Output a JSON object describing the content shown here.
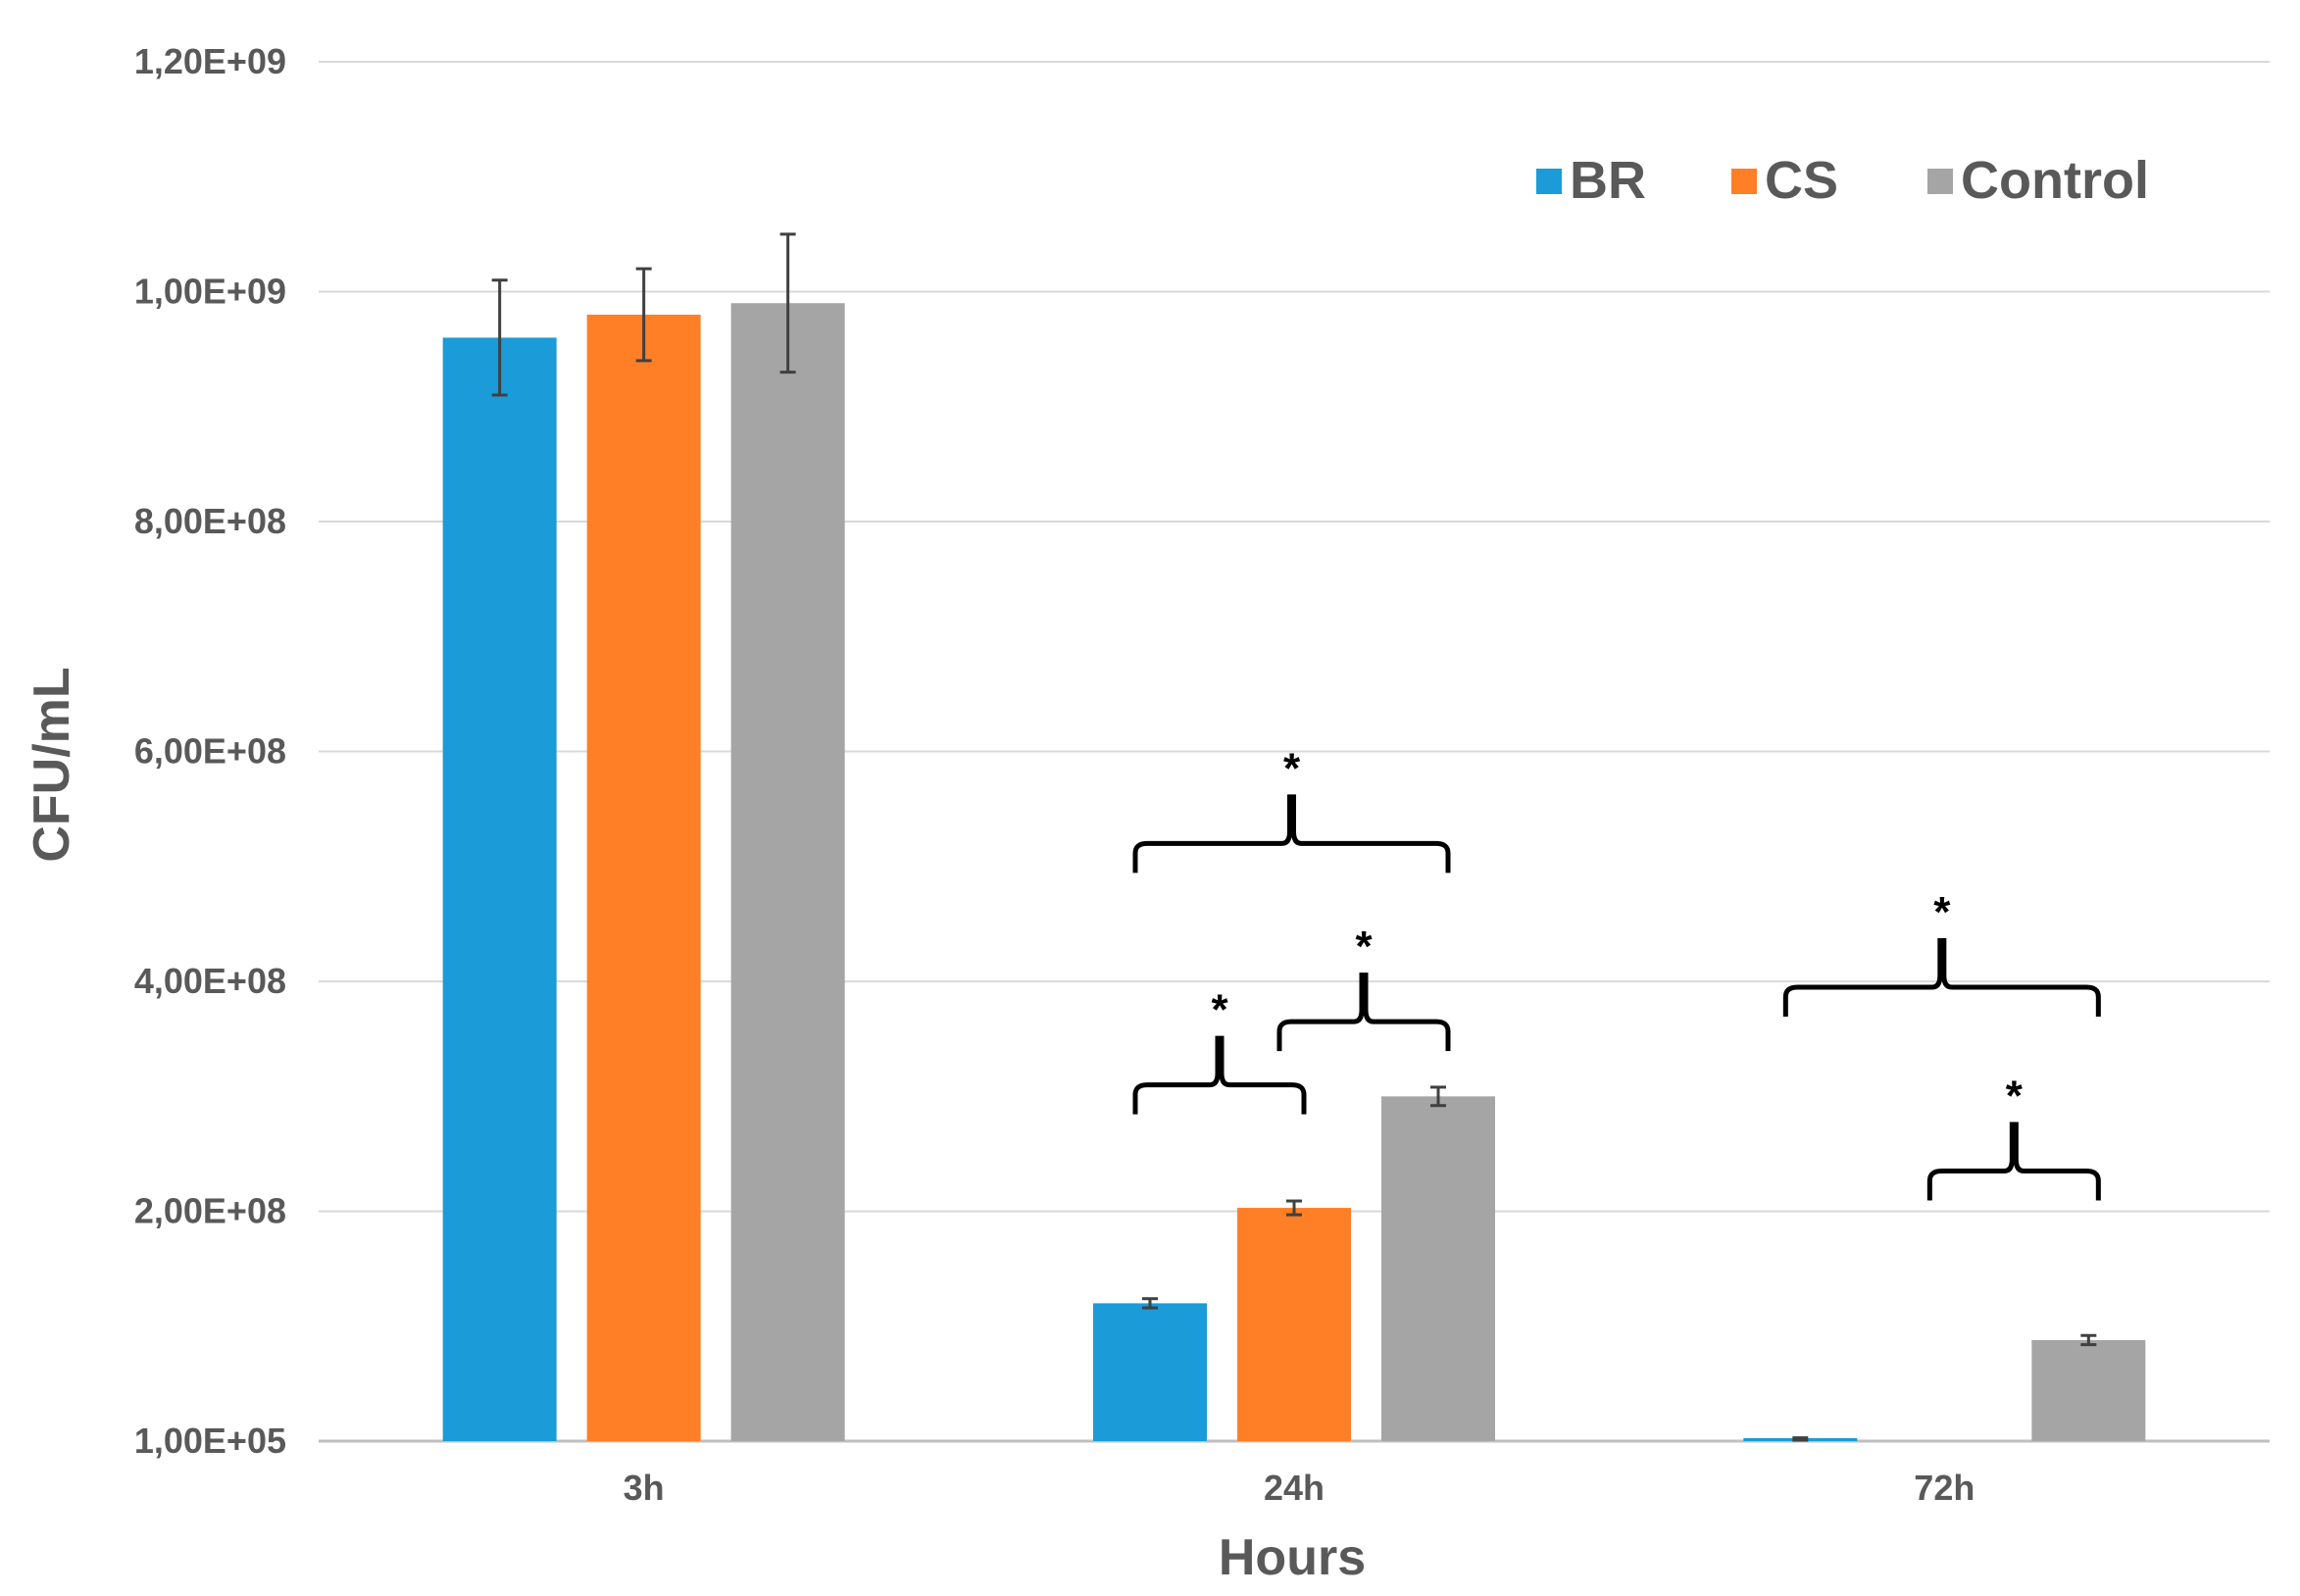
{
  "chart_data": {
    "type": "bar",
    "title": "",
    "xlabel": "Hours",
    "ylabel": "CFU/mL",
    "categories": [
      "3h",
      "24h",
      "72h"
    ],
    "ylim": [
      100000,
      1200000000
    ],
    "y_tick_values": [
      100000,
      200000000,
      400000000,
      600000000,
      800000000,
      1000000000,
      1200000000
    ],
    "y_tick_labels": [
      "1,00E+05",
      "2,00E+08",
      "4,00E+08",
      "6,00E+08",
      "8,00E+08",
      "1,00E+09",
      "1,20E+09"
    ],
    "grid": true,
    "legend_position": "top-right",
    "series": [
      {
        "name": "BR",
        "color": "#1B9BD7",
        "values": [
          960000000,
          120000000,
          2000000
        ],
        "errors": [
          50000000,
          4000000,
          1000000
        ]
      },
      {
        "name": "CS",
        "color": "#FF7F27",
        "values": [
          980000000,
          203000000,
          0
        ],
        "errors": [
          40000000,
          6000000,
          0
        ]
      },
      {
        "name": "Control",
        "color": "#A5A5A5",
        "values": [
          990000000,
          300000000,
          88000000
        ],
        "errors": [
          60000000,
          8000000,
          4000000
        ]
      }
    ],
    "annotations": [
      {
        "text": "*",
        "category": "24h",
        "from_series": 0,
        "to_series": 2,
        "level": 520000000
      },
      {
        "text": "*",
        "category": "24h",
        "from_series": 0,
        "to_series": 1,
        "level": 310000000
      },
      {
        "text": "*",
        "category": "24h",
        "from_series": 1,
        "to_series": 2,
        "level": 365000000
      },
      {
        "text": "*",
        "category": "72h",
        "from_series": 0,
        "to_series": 2,
        "level": 395000000
      },
      {
        "text": "*",
        "category": "72h",
        "from_series": 1,
        "to_series": 2,
        "level": 235000000
      }
    ]
  }
}
